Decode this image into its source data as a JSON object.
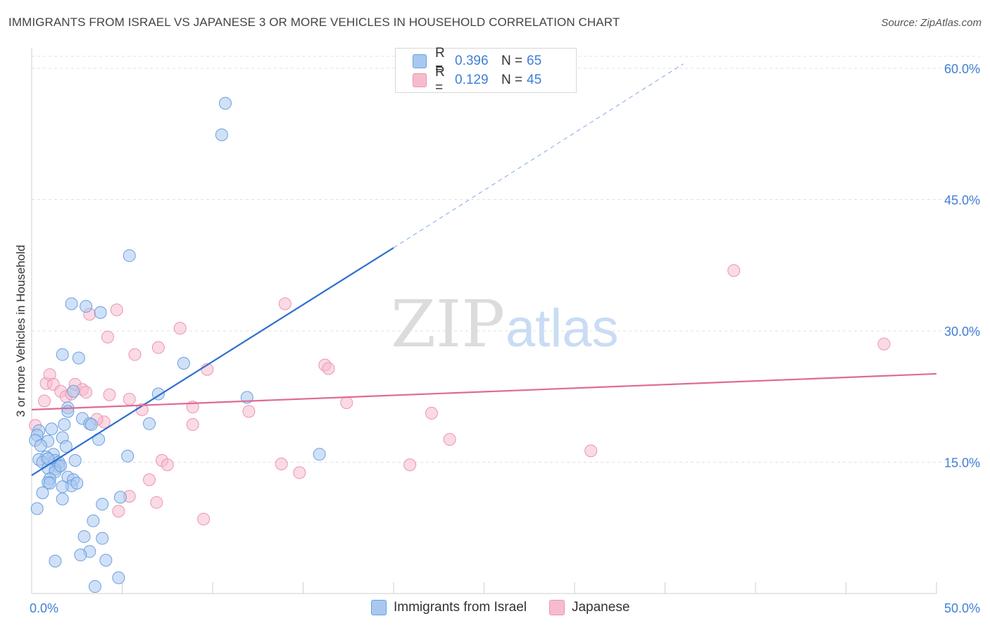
{
  "title": "IMMIGRANTS FROM ISRAEL VS JAPANESE 3 OR MORE VEHICLES IN HOUSEHOLD CORRELATION CHART",
  "source": "Source: ZipAtlas.com",
  "legend": {
    "rows": [
      {
        "r_label": "R =",
        "r_value": "0.396",
        "n_label": "N =",
        "n_value": "65"
      },
      {
        "r_label": "R =",
        "r_value": "0.129",
        "n_label": "N =",
        "n_value": "45"
      }
    ]
  },
  "colors": {
    "israel_fill": "#a9c8f0",
    "israel_stroke": "#6a9fe0",
    "israel_line": "#2f6fcf",
    "japanese_fill": "#f6bccd",
    "japanese_stroke": "#ec95b0",
    "japanese_line": "#e06a94",
    "axis_text": "#3f7fd6"
  },
  "chart_data": {
    "type": "scatter",
    "title": "IMMIGRANTS FROM ISRAEL VS JAPANESE 3 OR MORE VEHICLES IN HOUSEHOLD CORRELATION CHART",
    "xlabel": "",
    "ylabel": "3 or more Vehicles in Household",
    "xlim": [
      0,
      50
    ],
    "ylim": [
      0,
      60
    ],
    "x_tick_labels": [
      "0.0%",
      "50.0%"
    ],
    "y_tick_labels": [
      "15.0%",
      "30.0%",
      "45.0%",
      "60.0%"
    ],
    "y_ticks": [
      15,
      30,
      45,
      60
    ],
    "grid": true,
    "legend_position": "top-center",
    "watermark": "ZIPatlas",
    "series": [
      {
        "name": "Immigrants from Israel",
        "R": 0.396,
        "N": 65,
        "trend": {
          "x0": 0,
          "y0": 13.5,
          "x1": 20,
          "y1": 39.5,
          "dashed_to_x": 36,
          "dashed_to_y": 60.5
        },
        "points": [
          [
            10.7,
            56.0
          ],
          [
            10.5,
            52.4
          ],
          [
            5.4,
            38.6
          ],
          [
            2.2,
            33.1
          ],
          [
            3.0,
            32.8
          ],
          [
            3.8,
            32.1
          ],
          [
            1.7,
            27.3
          ],
          [
            2.6,
            26.9
          ],
          [
            8.4,
            26.3
          ],
          [
            2.3,
            23.1
          ],
          [
            7.0,
            22.8
          ],
          [
            11.9,
            22.4
          ],
          [
            2.0,
            21.2
          ],
          [
            2.0,
            20.8
          ],
          [
            2.8,
            20.0
          ],
          [
            3.2,
            19.4
          ],
          [
            3.3,
            19.3
          ],
          [
            6.5,
            19.4
          ],
          [
            1.8,
            19.3
          ],
          [
            1.1,
            18.8
          ],
          [
            0.4,
            18.6
          ],
          [
            0.3,
            18.1
          ],
          [
            0.2,
            17.5
          ],
          [
            1.7,
            17.8
          ],
          [
            0.9,
            17.4
          ],
          [
            3.7,
            17.6
          ],
          [
            0.5,
            16.9
          ],
          [
            1.9,
            16.8
          ],
          [
            1.2,
            15.9
          ],
          [
            0.8,
            15.6
          ],
          [
            0.4,
            15.3
          ],
          [
            0.6,
            15.0
          ],
          [
            1.3,
            15.2
          ],
          [
            1.5,
            15.0
          ],
          [
            2.4,
            15.2
          ],
          [
            5.3,
            15.7
          ],
          [
            15.9,
            15.9
          ],
          [
            1.5,
            14.5
          ],
          [
            1.3,
            14.2
          ],
          [
            0.9,
            14.3
          ],
          [
            1.3,
            13.9
          ],
          [
            2.0,
            13.3
          ],
          [
            1.0,
            13.1
          ],
          [
            0.9,
            12.7
          ],
          [
            2.3,
            13.0
          ],
          [
            2.2,
            12.3
          ],
          [
            1.7,
            12.2
          ],
          [
            1.0,
            12.6
          ],
          [
            0.6,
            11.5
          ],
          [
            1.7,
            10.8
          ],
          [
            4.9,
            11.0
          ],
          [
            3.9,
            10.2
          ],
          [
            0.3,
            9.7
          ],
          [
            3.4,
            8.3
          ],
          [
            2.9,
            6.5
          ],
          [
            3.9,
            6.3
          ],
          [
            3.2,
            4.8
          ],
          [
            2.7,
            4.4
          ],
          [
            4.1,
            3.8
          ],
          [
            1.3,
            3.7
          ],
          [
            4.8,
            1.8
          ],
          [
            3.5,
            0.8
          ],
          [
            0.9,
            15.4
          ],
          [
            1.6,
            14.6
          ],
          [
            2.5,
            12.6
          ]
        ]
      },
      {
        "name": "Japanese",
        "R": 0.129,
        "N": 45,
        "trend": {
          "x0": 0,
          "y0": 21.0,
          "x1": 50,
          "y1": 25.1
        },
        "points": [
          [
            0.2,
            19.2
          ],
          [
            0.8,
            24.0
          ],
          [
            1.0,
            25.0
          ],
          [
            1.2,
            23.9
          ],
          [
            1.6,
            23.1
          ],
          [
            1.9,
            22.5
          ],
          [
            2.2,
            22.8
          ],
          [
            2.4,
            23.9
          ],
          [
            2.8,
            23.3
          ],
          [
            3.0,
            23.0
          ],
          [
            0.7,
            22.0
          ],
          [
            3.2,
            31.9
          ],
          [
            4.7,
            32.4
          ],
          [
            4.2,
            29.3
          ],
          [
            5.7,
            27.3
          ],
          [
            7.0,
            28.1
          ],
          [
            8.2,
            30.3
          ],
          [
            14.0,
            33.1
          ],
          [
            9.7,
            25.6
          ],
          [
            16.2,
            26.1
          ],
          [
            16.4,
            25.7
          ],
          [
            17.4,
            21.8
          ],
          [
            4.3,
            22.7
          ],
          [
            5.4,
            22.2
          ],
          [
            6.1,
            21.0
          ],
          [
            8.9,
            21.3
          ],
          [
            12.0,
            20.8
          ],
          [
            4.0,
            19.6
          ],
          [
            3.6,
            19.9
          ],
          [
            8.9,
            19.3
          ],
          [
            22.1,
            20.6
          ],
          [
            23.1,
            17.6
          ],
          [
            30.9,
            16.3
          ],
          [
            7.2,
            15.2
          ],
          [
            7.5,
            14.7
          ],
          [
            13.8,
            14.8
          ],
          [
            14.8,
            13.8
          ],
          [
            20.9,
            14.7
          ],
          [
            6.5,
            13.0
          ],
          [
            5.4,
            11.1
          ],
          [
            6.9,
            10.4
          ],
          [
            4.8,
            9.4
          ],
          [
            9.5,
            8.5
          ],
          [
            38.8,
            36.9
          ],
          [
            47.1,
            28.5
          ]
        ]
      }
    ]
  },
  "bottom_legend": {
    "israel_label": "Immigrants from Israel",
    "japanese_label": "Japanese"
  }
}
